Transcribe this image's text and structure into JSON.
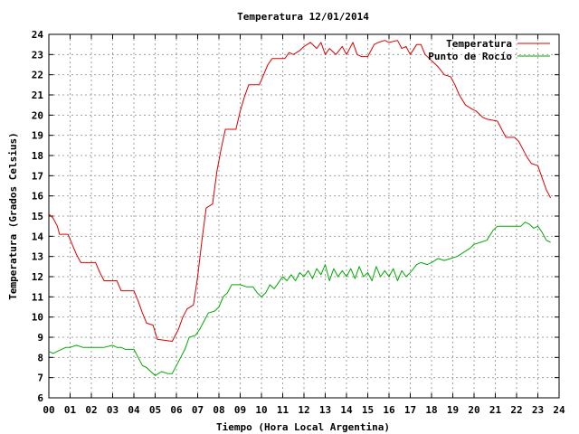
{
  "chart_data": {
    "type": "line",
    "title": "Temperatura 12/01/2014",
    "xlabel": "Tiempo (Hora Local Argentina)",
    "ylabel": "Temperatura (Grados Celsius)",
    "xlim": [
      0,
      24
    ],
    "ylim": [
      6,
      24
    ],
    "x_ticks": [
      "00",
      "01",
      "02",
      "03",
      "04",
      "05",
      "06",
      "07",
      "08",
      "09",
      "10",
      "11",
      "12",
      "13",
      "14",
      "15",
      "16",
      "17",
      "18",
      "19",
      "20",
      "21",
      "22",
      "23",
      "24"
    ],
    "y_ticks": [
      "6",
      "7",
      "8",
      "9",
      "10",
      "11",
      "12",
      "13",
      "14",
      "15",
      "16",
      "17",
      "18",
      "19",
      "20",
      "21",
      "22",
      "23",
      "24"
    ],
    "grid": true,
    "legend_position": "top-right",
    "colors": {
      "temperature": "#dd0000",
      "dewpoint": "#00aa00",
      "grid": "#a0a0a0",
      "frame": "#000000"
    },
    "series": [
      {
        "name": "Temperatura",
        "color": "#dd0000",
        "points": [
          [
            0.0,
            15.1
          ],
          [
            0.2,
            14.9
          ],
          [
            0.4,
            14.5
          ],
          [
            0.5,
            14.1
          ],
          [
            0.9,
            14.1
          ],
          [
            1.1,
            13.6
          ],
          [
            1.3,
            13.1
          ],
          [
            1.5,
            12.7
          ],
          [
            2.2,
            12.7
          ],
          [
            2.4,
            12.2
          ],
          [
            2.6,
            11.8
          ],
          [
            3.2,
            11.8
          ],
          [
            3.4,
            11.3
          ],
          [
            4.0,
            11.3
          ],
          [
            4.2,
            10.8
          ],
          [
            4.4,
            10.2
          ],
          [
            4.6,
            9.7
          ],
          [
            4.9,
            9.6
          ],
          [
            5.1,
            8.9
          ],
          [
            5.8,
            8.8
          ],
          [
            6.1,
            9.4
          ],
          [
            6.3,
            10.0
          ],
          [
            6.5,
            10.4
          ],
          [
            6.8,
            10.6
          ],
          [
            7.0,
            12.0
          ],
          [
            7.2,
            13.8
          ],
          [
            7.4,
            15.4
          ],
          [
            7.7,
            15.6
          ],
          [
            7.9,
            17.2
          ],
          [
            8.1,
            18.3
          ],
          [
            8.3,
            19.3
          ],
          [
            8.8,
            19.3
          ],
          [
            9.0,
            20.2
          ],
          [
            9.2,
            20.9
          ],
          [
            9.4,
            21.5
          ],
          [
            9.9,
            21.5
          ],
          [
            10.1,
            22.0
          ],
          [
            10.3,
            22.5
          ],
          [
            10.5,
            22.8
          ],
          [
            11.1,
            22.8
          ],
          [
            11.3,
            23.1
          ],
          [
            11.5,
            23.0
          ],
          [
            11.8,
            23.2
          ],
          [
            12.0,
            23.4
          ],
          [
            12.3,
            23.6
          ],
          [
            12.6,
            23.3
          ],
          [
            12.8,
            23.6
          ],
          [
            13.0,
            23.0
          ],
          [
            13.2,
            23.3
          ],
          [
            13.5,
            23.0
          ],
          [
            13.8,
            23.4
          ],
          [
            14.0,
            23.0
          ],
          [
            14.3,
            23.6
          ],
          [
            14.5,
            23.0
          ],
          [
            14.7,
            22.9
          ],
          [
            15.0,
            22.9
          ],
          [
            15.3,
            23.5
          ],
          [
            15.5,
            23.6
          ],
          [
            15.8,
            23.7
          ],
          [
            16.0,
            23.6
          ],
          [
            16.4,
            23.7
          ],
          [
            16.6,
            23.3
          ],
          [
            16.8,
            23.4
          ],
          [
            17.0,
            23.0
          ],
          [
            17.3,
            23.5
          ],
          [
            17.5,
            23.5
          ],
          [
            17.7,
            23.0
          ],
          [
            17.9,
            22.8
          ],
          [
            18.1,
            22.6
          ],
          [
            18.3,
            22.4
          ],
          [
            18.6,
            22.0
          ],
          [
            18.9,
            21.9
          ],
          [
            19.1,
            21.5
          ],
          [
            19.3,
            21.0
          ],
          [
            19.6,
            20.5
          ],
          [
            19.9,
            20.3
          ],
          [
            20.1,
            20.2
          ],
          [
            20.4,
            19.9
          ],
          [
            20.6,
            19.8
          ],
          [
            21.1,
            19.7
          ],
          [
            21.3,
            19.3
          ],
          [
            21.5,
            18.9
          ],
          [
            21.9,
            18.9
          ],
          [
            22.1,
            18.7
          ],
          [
            22.3,
            18.3
          ],
          [
            22.5,
            17.9
          ],
          [
            22.7,
            17.6
          ],
          [
            23.0,
            17.5
          ],
          [
            23.2,
            16.9
          ],
          [
            23.4,
            16.3
          ],
          [
            23.6,
            15.9
          ]
        ]
      },
      {
        "name": "Punto de Rocío",
        "color": "#00aa00",
        "points": [
          [
            0.0,
            8.3
          ],
          [
            0.2,
            8.2
          ],
          [
            0.4,
            8.3
          ],
          [
            0.6,
            8.4
          ],
          [
            0.8,
            8.5
          ],
          [
            1.0,
            8.5
          ],
          [
            1.3,
            8.6
          ],
          [
            1.6,
            8.5
          ],
          [
            2.0,
            8.5
          ],
          [
            2.3,
            8.5
          ],
          [
            2.6,
            8.5
          ],
          [
            3.0,
            8.6
          ],
          [
            3.2,
            8.5
          ],
          [
            3.4,
            8.5
          ],
          [
            3.6,
            8.4
          ],
          [
            4.0,
            8.4
          ],
          [
            4.2,
            8.0
          ],
          [
            4.4,
            7.6
          ],
          [
            4.6,
            7.5
          ],
          [
            4.8,
            7.3
          ],
          [
            5.0,
            7.1
          ],
          [
            5.3,
            7.3
          ],
          [
            5.6,
            7.2
          ],
          [
            5.8,
            7.2
          ],
          [
            6.0,
            7.6
          ],
          [
            6.2,
            8.0
          ],
          [
            6.4,
            8.4
          ],
          [
            6.6,
            9.0
          ],
          [
            6.9,
            9.1
          ],
          [
            7.1,
            9.4
          ],
          [
            7.3,
            9.8
          ],
          [
            7.5,
            10.2
          ],
          [
            7.8,
            10.3
          ],
          [
            8.0,
            10.5
          ],
          [
            8.2,
            11.0
          ],
          [
            8.4,
            11.2
          ],
          [
            8.6,
            11.6
          ],
          [
            9.0,
            11.6
          ],
          [
            9.3,
            11.5
          ],
          [
            9.6,
            11.5
          ],
          [
            9.8,
            11.2
          ],
          [
            10.0,
            11.0
          ],
          [
            10.2,
            11.2
          ],
          [
            10.4,
            11.6
          ],
          [
            10.6,
            11.4
          ],
          [
            10.8,
            11.7
          ],
          [
            11.0,
            12.0
          ],
          [
            11.2,
            11.8
          ],
          [
            11.4,
            12.1
          ],
          [
            11.6,
            11.8
          ],
          [
            11.8,
            12.2
          ],
          [
            12.0,
            12.0
          ],
          [
            12.2,
            12.3
          ],
          [
            12.4,
            11.9
          ],
          [
            12.6,
            12.4
          ],
          [
            12.8,
            12.1
          ],
          [
            13.0,
            12.6
          ],
          [
            13.2,
            11.8
          ],
          [
            13.4,
            12.4
          ],
          [
            13.6,
            12.0
          ],
          [
            13.8,
            12.3
          ],
          [
            14.0,
            12.0
          ],
          [
            14.2,
            12.4
          ],
          [
            14.4,
            11.9
          ],
          [
            14.6,
            12.5
          ],
          [
            14.8,
            12.0
          ],
          [
            15.0,
            12.2
          ],
          [
            15.2,
            11.8
          ],
          [
            15.4,
            12.5
          ],
          [
            15.6,
            12.0
          ],
          [
            15.8,
            12.3
          ],
          [
            16.0,
            12.0
          ],
          [
            16.2,
            12.4
          ],
          [
            16.4,
            11.8
          ],
          [
            16.6,
            12.3
          ],
          [
            16.8,
            12.0
          ],
          [
            17.0,
            12.2
          ],
          [
            17.3,
            12.6
          ],
          [
            17.5,
            12.7
          ],
          [
            17.8,
            12.6
          ],
          [
            18.0,
            12.7
          ],
          [
            18.3,
            12.9
          ],
          [
            18.6,
            12.8
          ],
          [
            18.9,
            12.9
          ],
          [
            19.2,
            13.0
          ],
          [
            19.5,
            13.2
          ],
          [
            19.8,
            13.4
          ],
          [
            20.0,
            13.6
          ],
          [
            20.3,
            13.7
          ],
          [
            20.6,
            13.8
          ],
          [
            20.9,
            14.3
          ],
          [
            21.1,
            14.5
          ],
          [
            21.4,
            14.5
          ],
          [
            21.7,
            14.5
          ],
          [
            22.0,
            14.5
          ],
          [
            22.2,
            14.5
          ],
          [
            22.4,
            14.7
          ],
          [
            22.6,
            14.6
          ],
          [
            22.8,
            14.4
          ],
          [
            23.0,
            14.5
          ],
          [
            23.2,
            14.2
          ],
          [
            23.4,
            13.8
          ],
          [
            23.6,
            13.7
          ]
        ]
      }
    ]
  }
}
